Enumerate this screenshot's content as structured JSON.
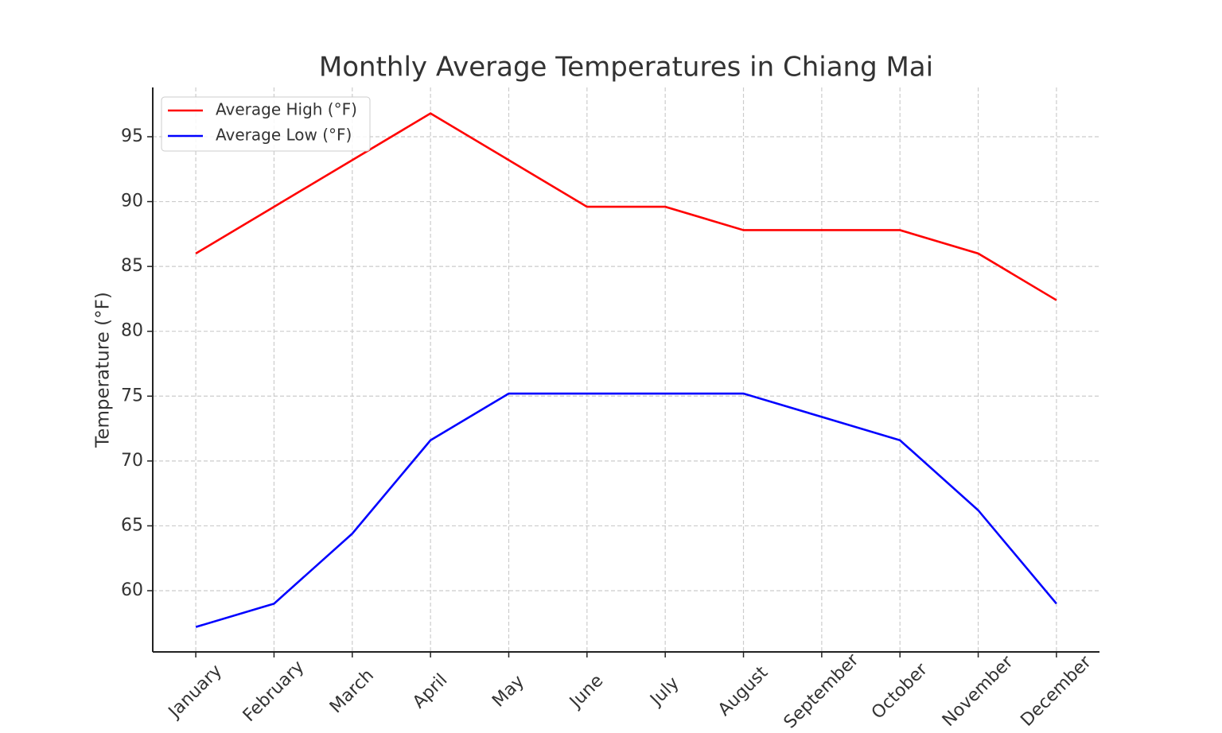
{
  "chart_data": {
    "type": "line",
    "title": "Monthly Average Temperatures in Chiang Mai",
    "y_label": "Temperature (°F)",
    "categories": [
      "January",
      "February",
      "March",
      "April",
      "May",
      "June",
      "July",
      "August",
      "September",
      "October",
      "November",
      "December"
    ],
    "series": [
      {
        "name": "Average High (°F)",
        "color": "#ff0000",
        "values": [
          86,
          89.6,
          93.2,
          96.8,
          93.2,
          89.6,
          89.6,
          87.8,
          87.8,
          87.8,
          86,
          82.4
        ]
      },
      {
        "name": "Average Low (°F)",
        "color": "#0000ff",
        "values": [
          57.2,
          59,
          64.4,
          71.6,
          75.2,
          75.2,
          75.2,
          75.2,
          73.4,
          71.6,
          66.2,
          59
        ]
      }
    ],
    "ylim": [
      55.28,
      98.8
    ],
    "yticks": [
      60,
      65,
      70,
      75,
      80,
      85,
      90,
      95
    ],
    "grid": true,
    "legend": "upper left"
  }
}
